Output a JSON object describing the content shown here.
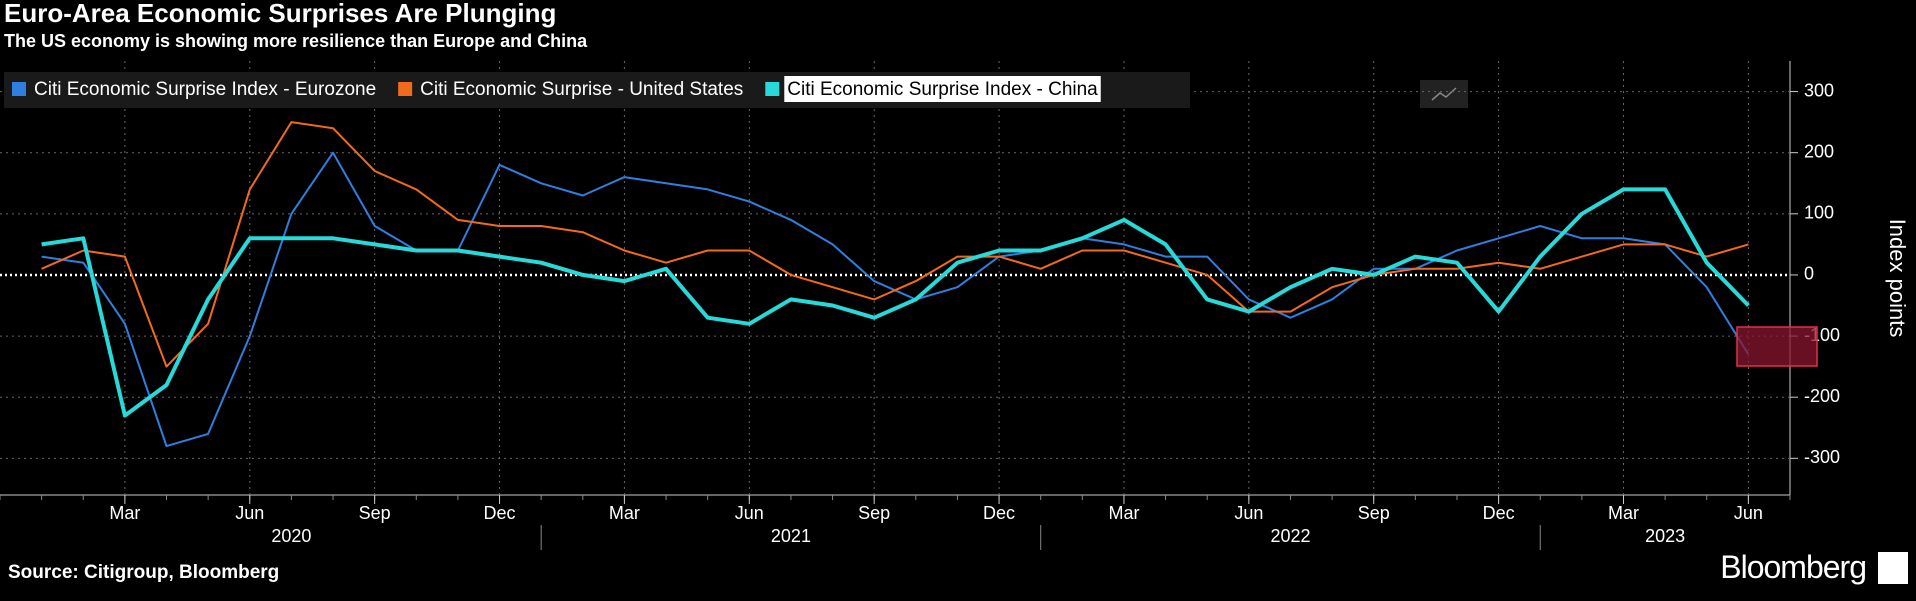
{
  "chart_data": {
    "type": "line",
    "title": "Euro-Area Economic Surprises Are Plunging",
    "subtitle": "The US economy is showing more resilience than Europe and China",
    "source": "Source: Citigroup, Bloomberg",
    "brand": "Bloomberg",
    "y_label": "Index points",
    "x": [
      "2020-01",
      "2020-02",
      "2020-03",
      "2020-04",
      "2020-05",
      "2020-06",
      "2020-07",
      "2020-08",
      "2020-09",
      "2020-10",
      "2020-11",
      "2020-12",
      "2021-01",
      "2021-02",
      "2021-03",
      "2021-04",
      "2021-05",
      "2021-06",
      "2021-07",
      "2021-08",
      "2021-09",
      "2021-10",
      "2021-11",
      "2021-12",
      "2022-01",
      "2022-02",
      "2022-03",
      "2022-04",
      "2022-05",
      "2022-06",
      "2022-07",
      "2022-08",
      "2022-09",
      "2022-10",
      "2022-11",
      "2022-12",
      "2023-01",
      "2023-02",
      "2023-03",
      "2023-04",
      "2023-05",
      "2023-06"
    ],
    "series": [
      {
        "name": "Citi Economic Surprise Index - Eurozone",
        "color": "#2e7fe0",
        "values": [
          30,
          20,
          -80,
          -280,
          -260,
          -100,
          100,
          200,
          80,
          40,
          40,
          180,
          150,
          130,
          160,
          150,
          140,
          120,
          90,
          50,
          -10,
          -40,
          -20,
          30,
          40,
          60,
          50,
          30,
          30,
          -40,
          -70,
          -40,
          10,
          10,
          40,
          60,
          80,
          60,
          60,
          50,
          -20,
          -130
        ]
      },
      {
        "name": "Citi Economic Surprise - United States",
        "color": "#f26a1b",
        "values": [
          10,
          40,
          30,
          -150,
          -80,
          140,
          250,
          240,
          170,
          140,
          90,
          80,
          80,
          70,
          40,
          20,
          40,
          40,
          0,
          -20,
          -40,
          -10,
          30,
          30,
          10,
          40,
          40,
          20,
          0,
          -60,
          -60,
          -20,
          0,
          10,
          10,
          20,
          10,
          30,
          50,
          50,
          30,
          50
        ]
      },
      {
        "name": "Citi Economic Surprise Index - China",
        "color": "#27d9d9",
        "values": [
          50,
          60,
          -230,
          -180,
          -40,
          60,
          60,
          60,
          50,
          40,
          40,
          30,
          20,
          0,
          -10,
          10,
          -70,
          -80,
          -40,
          -50,
          -70,
          -40,
          20,
          40,
          40,
          60,
          90,
          50,
          -40,
          -60,
          -20,
          10,
          0,
          30,
          20,
          -60,
          30,
          100,
          140,
          140,
          20,
          -50
        ]
      }
    ],
    "xlim": [
      "2019-12",
      "2023-07"
    ],
    "xticks": [
      {
        "value": "2020-03",
        "label": "Mar"
      },
      {
        "value": "2020-06",
        "label": "Jun"
      },
      {
        "value": "2020-09",
        "label": "Sep"
      },
      {
        "value": "2020-12",
        "label": "Dec"
      },
      {
        "value": "2021-03",
        "label": "Mar"
      },
      {
        "value": "2021-06",
        "label": "Jun"
      },
      {
        "value": "2021-09",
        "label": "Sep"
      },
      {
        "value": "2021-12",
        "label": "Dec"
      },
      {
        "value": "2022-03",
        "label": "Mar"
      },
      {
        "value": "2022-06",
        "label": "Jun"
      },
      {
        "value": "2022-09",
        "label": "Sep"
      },
      {
        "value": "2022-12",
        "label": "Dec"
      },
      {
        "value": "2023-03",
        "label": "Mar"
      },
      {
        "value": "2023-06",
        "label": "Jun"
      }
    ],
    "years": [
      "2020",
      "2021",
      "2022",
      "2023"
    ],
    "ylim": [
      -360,
      350
    ],
    "yticks": [
      -300,
      -200,
      -100,
      0,
      100,
      200,
      300
    ],
    "grid": true
  }
}
